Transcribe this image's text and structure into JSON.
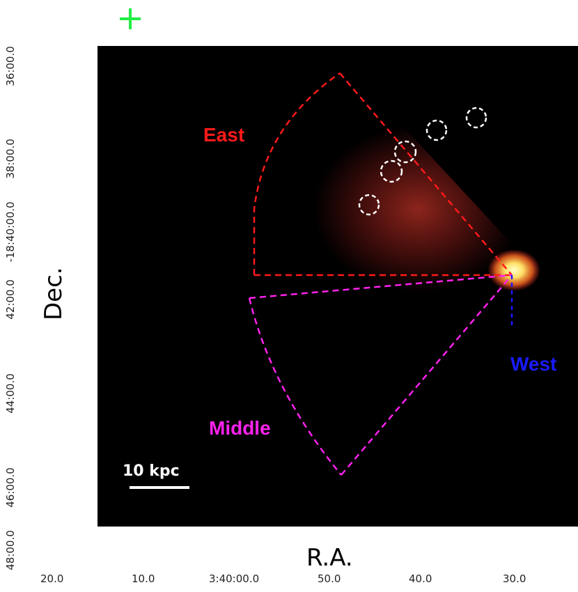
{
  "image": {
    "description_free": true,
    "colors": {
      "background": "#000000",
      "low_emission": "#1a14ff",
      "mid_emission": "#ff2a2a",
      "high_emission": "#ffee66",
      "east_region": "#ff1a1a",
      "middle_region": "#ff22ee",
      "west_region": "#1a1aff",
      "marker": "#22ee44",
      "point_source_circles": "#ffffff"
    }
  },
  "axes": {
    "x_label": "R.A.",
    "y_label": "Dec.",
    "x_ticks": [
      "20.0",
      "10.0",
      "3:40:00.0",
      "50.0",
      "40.0",
      "30.0"
    ],
    "y_ticks": [
      "36:00.0",
      "38:00.0",
      "-18:40:00.0",
      "42:00.0",
      "44:00.0",
      "46:00.0",
      "48:00.0"
    ]
  },
  "labels": {
    "east": "East",
    "middle": "Middle",
    "west": "West"
  },
  "scale_bar": {
    "label": "10 kpc"
  }
}
